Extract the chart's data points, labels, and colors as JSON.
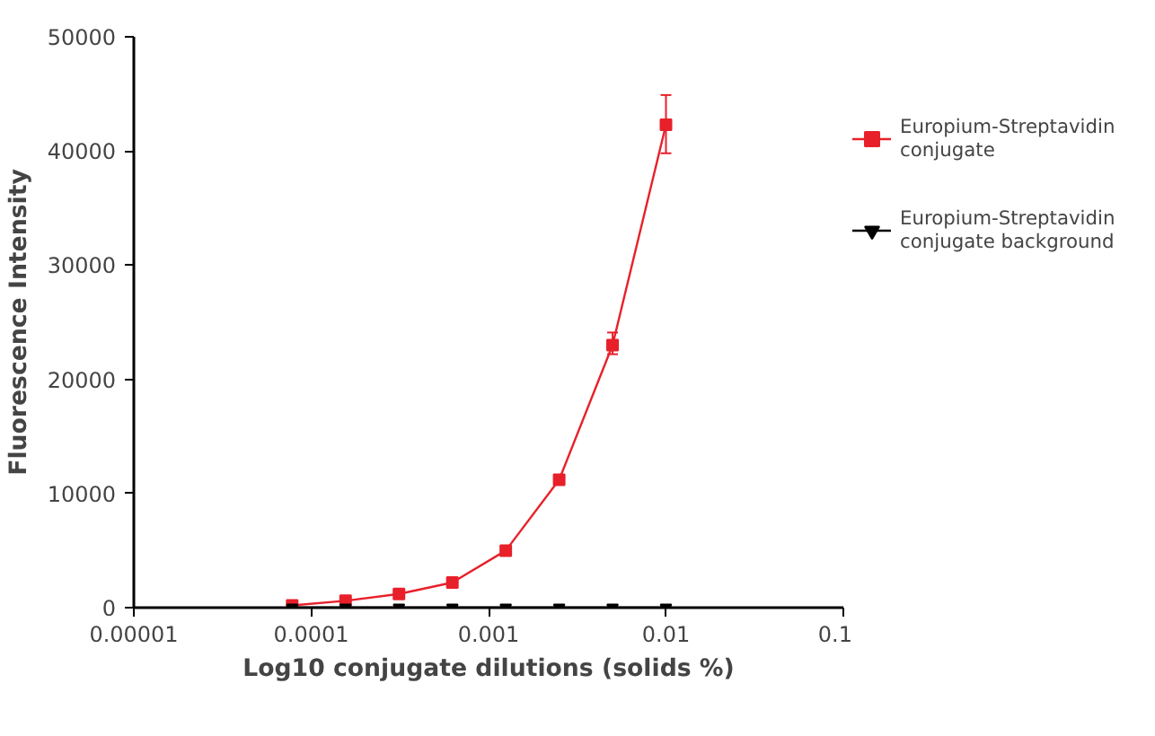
{
  "chart_data": {
    "type": "line",
    "xlabel": "Log10 conjugate dilutions (solids %)",
    "ylabel": "Fluorescence Intensity",
    "x": [
      7.8125e-05,
      0.00015625,
      0.0003125,
      0.000625,
      0.00125,
      0.0025,
      0.005,
      0.01
    ],
    "log": "x",
    "xlim": [
      1e-05,
      0.1
    ],
    "xticks": [
      {
        "value": 1e-05,
        "label": "0.00001"
      },
      {
        "value": 0.0001,
        "label": "0.0001"
      },
      {
        "value": 0.001,
        "label": "0.001"
      },
      {
        "value": 0.01,
        "label": "0.01"
      },
      {
        "value": 0.1,
        "label": "0.1"
      }
    ],
    "ylim": [
      0,
      50000
    ],
    "yticks": [
      0,
      10000,
      20000,
      30000,
      40000,
      50000
    ],
    "grid": false,
    "legend": "right",
    "line_style": "solid",
    "series": [
      {
        "name": "Europium-Streptavidin conjugate",
        "color": "#e8202a",
        "marker": "square",
        "values": [
          200,
          600,
          1200,
          2200,
          5000,
          11200,
          23000,
          42300
        ],
        "errors": [
          null,
          null,
          null,
          null,
          null,
          null,
          [
            22200,
            24100
          ],
          [
            39800,
            44900
          ]
        ]
      },
      {
        "name": "Europium-Streptavidin conjugate background",
        "color": "#000000",
        "marker": "triangle",
        "values": [
          0,
          0,
          0,
          0,
          0,
          0,
          0,
          0
        ]
      }
    ]
  }
}
